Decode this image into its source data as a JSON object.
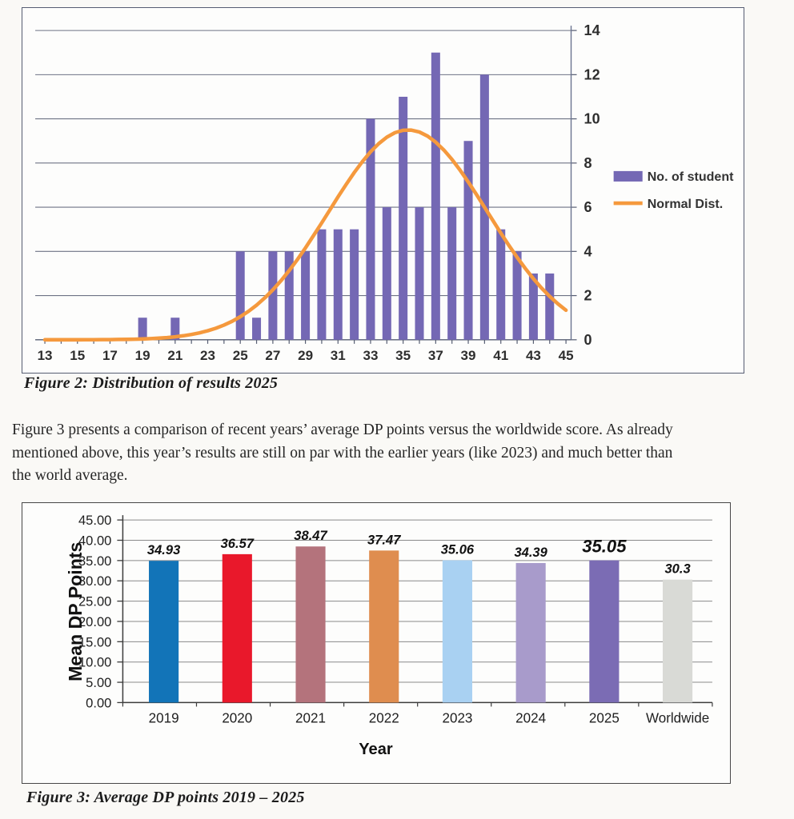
{
  "chart_data": [
    {
      "id": "distribution-2025",
      "type": "bar",
      "title": "",
      "categories": [
        13,
        14,
        15,
        16,
        17,
        18,
        19,
        20,
        21,
        22,
        23,
        24,
        25,
        26,
        27,
        28,
        29,
        30,
        31,
        32,
        33,
        34,
        35,
        36,
        37,
        38,
        39,
        40,
        41,
        42,
        43,
        44,
        45
      ],
      "series": [
        {
          "name": "No. of student",
          "values": [
            0,
            0,
            0,
            0,
            0,
            0,
            1,
            0,
            1,
            0,
            0,
            0,
            4,
            1,
            4,
            4,
            4,
            5,
            5,
            5,
            10,
            6,
            11,
            6,
            13,
            6,
            9,
            12,
            5,
            4,
            3,
            3,
            0
          ]
        }
      ],
      "normal_curve": {
        "name": "Normal Dist.",
        "shape": "gaussian",
        "peak": 9.5,
        "mean": 35.3,
        "sd": 4.9,
        "x_range": [
          13,
          45
        ]
      },
      "xticks_shown": [
        "13",
        "15",
        "17",
        "19",
        "21",
        "23",
        "25",
        "27",
        "29",
        "31",
        "33",
        "35",
        "37",
        "39",
        "41",
        "43",
        "45"
      ],
      "yticks": [
        "0",
        "2",
        "4",
        "6",
        "8",
        "10",
        "12",
        "14"
      ],
      "ylim": [
        0,
        14
      ],
      "grid": true,
      "legend_position": "right",
      "bar_color": "#7468b4",
      "curve_color": "#f5993d"
    },
    {
      "id": "average-dp-points",
      "type": "bar",
      "categories": [
        "2019",
        "2020",
        "2021",
        "2022",
        "2023",
        "2024",
        "2025",
        "Worldwide"
      ],
      "values": [
        34.93,
        36.57,
        38.47,
        37.47,
        35.06,
        34.39,
        35.05,
        30.3
      ],
      "labels": [
        "34.93",
        "36.57",
        "38.47",
        "37.47",
        "35.06",
        "34.39",
        "35.05",
        "30.3"
      ],
      "label_large_index": 6,
      "bar_colors": [
        "#1274b8",
        "#e9182b",
        "#b4737c",
        "#df8d4f",
        "#a9d1f2",
        "#a89bcb",
        "#7b6cb4",
        "#d9dad6"
      ],
      "xlabel": "Year",
      "ylabel": "Mean DP Points",
      "yticks": [
        "0.00",
        "5.00",
        "10.00",
        "15.00",
        "20.00",
        "25.00",
        "30.00",
        "35.00",
        "40.00",
        "45.00"
      ],
      "ylim": [
        0,
        45
      ],
      "grid": true,
      "legend_position": "none"
    }
  ],
  "figure2": {
    "caption": "Figure 2: Distribution of results 2025",
    "legend": [
      {
        "label": "No. of student",
        "swatch": "bar",
        "color": "#7468b4"
      },
      {
        "label": "Normal Dist.",
        "swatch": "line",
        "color": "#f5993d"
      }
    ]
  },
  "paragraph": {
    "lines": [
      "Figure 3 presents a comparison of recent years’ average DP points versus the worldwide score. As already",
      "mentioned above, this year’s results are still on par with the earlier years (like 2023) and much better than",
      "the world average."
    ]
  },
  "figure3": {
    "caption": "Figure 3: Average DP points 2019 – 2025"
  },
  "colors": {
    "page_background": "#faf9f6",
    "grid_line": "#6e7385",
    "axis_dark": "#3c3c3c",
    "frame_top": "#565d72",
    "frame_bottom": "#474747"
  }
}
